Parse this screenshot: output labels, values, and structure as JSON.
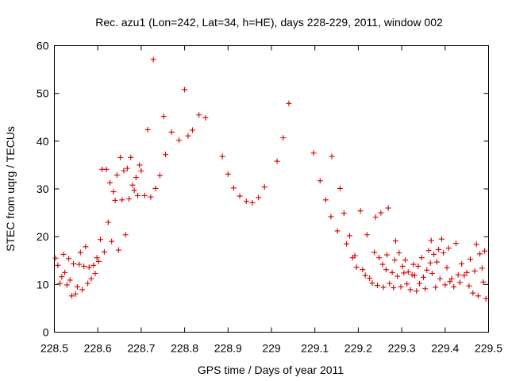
{
  "chart_data": {
    "type": "scatter",
    "title": "Rec. azu1 (Lon=242, Lat=34, h=HE), days 228-229, 2011, window 002",
    "xlabel": "GPS time / Days of year 2011",
    "ylabel": "STEC from uqrg / TECUs",
    "xlim": [
      228.5,
      229.5
    ],
    "ylim": [
      0,
      60
    ],
    "xticks": [
      228.5,
      228.6,
      228.7,
      228.8,
      228.9,
      229,
      229.1,
      229.2,
      229.3,
      229.4,
      229.5
    ],
    "xtick_labels": [
      "228.5",
      "228.6",
      "228.7",
      "228.8",
      "228.9",
      "229",
      "229.1",
      "229.2",
      "229.3",
      "229.4",
      "229.5"
    ],
    "yticks": [
      0,
      10,
      20,
      30,
      40,
      50,
      60
    ],
    "ytick_labels": [
      "0",
      "10",
      "20",
      "30",
      "40",
      "50",
      "60"
    ],
    "grid": false,
    "legend": false,
    "marker": "+",
    "color": "#d40000",
    "points": [
      [
        228.503,
        15.5
      ],
      [
        228.508,
        14.0
      ],
      [
        228.513,
        10.2
      ],
      [
        228.517,
        11.6
      ],
      [
        228.521,
        16.3
      ],
      [
        228.524,
        12.5
      ],
      [
        228.529,
        9.9
      ],
      [
        228.533,
        15.4
      ],
      [
        228.536,
        10.9
      ],
      [
        228.54,
        7.6
      ],
      [
        228.544,
        14.3
      ],
      [
        228.549,
        8.0
      ],
      [
        228.553,
        9.5
      ],
      [
        228.557,
        14.2
      ],
      [
        228.56,
        16.7
      ],
      [
        228.564,
        8.9
      ],
      [
        228.568,
        13.8
      ],
      [
        228.572,
        17.9
      ],
      [
        228.577,
        10.2
      ],
      [
        228.58,
        13.6
      ],
      [
        228.585,
        11.2
      ],
      [
        228.59,
        14.0
      ],
      [
        228.594,
        12.3
      ],
      [
        228.598,
        15.6
      ],
      [
        228.602,
        14.8
      ],
      [
        228.606,
        19.4
      ],
      [
        228.61,
        34.1
      ],
      [
        228.615,
        16.8
      ],
      [
        228.62,
        34.1
      ],
      [
        228.624,
        23.0
      ],
      [
        228.628,
        31.3
      ],
      [
        228.632,
        19.0
      ],
      [
        228.636,
        29.4
      ],
      [
        228.64,
        27.6
      ],
      [
        228.644,
        32.9
      ],
      [
        228.648,
        17.2
      ],
      [
        228.652,
        36.6
      ],
      [
        228.656,
        27.7
      ],
      [
        228.66,
        33.8
      ],
      [
        228.664,
        20.4
      ],
      [
        228.668,
        34.3
      ],
      [
        228.672,
        27.9
      ],
      [
        228.676,
        36.6
      ],
      [
        228.68,
        30.8
      ],
      [
        228.684,
        29.7
      ],
      [
        228.688,
        32.4
      ],
      [
        228.692,
        28.6
      ],
      [
        228.696,
        35.0
      ],
      [
        228.7,
        33.8
      ],
      [
        228.708,
        28.6
      ],
      [
        228.715,
        42.4
      ],
      [
        228.722,
        28.3
      ],
      [
        228.728,
        57.1
      ],
      [
        228.733,
        30.1
      ],
      [
        228.743,
        32.8
      ],
      [
        228.752,
        45.2
      ],
      [
        228.756,
        37.2
      ],
      [
        228.77,
        41.9
      ],
      [
        228.787,
        40.2
      ],
      [
        228.8,
        50.8
      ],
      [
        228.808,
        41.1
      ],
      [
        228.818,
        42.3
      ],
      [
        228.833,
        45.5
      ],
      [
        228.848,
        44.9
      ],
      [
        228.887,
        36.8
      ],
      [
        228.9,
        33.1
      ],
      [
        228.913,
        30.2
      ],
      [
        228.927,
        28.5
      ],
      [
        228.942,
        27.4
      ],
      [
        228.956,
        27.1
      ],
      [
        228.97,
        28.2
      ],
      [
        228.984,
        30.4
      ],
      [
        229.013,
        35.8
      ],
      [
        229.027,
        40.7
      ],
      [
        229.04,
        47.9
      ],
      [
        229.097,
        37.5
      ],
      [
        229.112,
        31.7
      ],
      [
        229.125,
        27.7
      ],
      [
        229.137,
        24.2
      ],
      [
        229.139,
        36.8
      ],
      [
        229.152,
        21.2
      ],
      [
        229.158,
        30.1
      ],
      [
        229.167,
        24.9
      ],
      [
        229.173,
        18.5
      ],
      [
        229.18,
        20.2
      ],
      [
        229.187,
        15.6
      ],
      [
        229.192,
        16.0
      ],
      [
        229.196,
        13.6
      ],
      [
        229.205,
        25.4
      ],
      [
        229.21,
        13.1
      ],
      [
        229.216,
        11.9
      ],
      [
        229.22,
        20.4
      ],
      [
        229.226,
        11.3
      ],
      [
        229.232,
        10.3
      ],
      [
        229.237,
        16.7
      ],
      [
        229.24,
        24.1
      ],
      [
        229.244,
        9.8
      ],
      [
        229.248,
        15.6
      ],
      [
        229.252,
        25.0
      ],
      [
        229.256,
        14.2
      ],
      [
        229.258,
        9.4
      ],
      [
        229.264,
        13.1
      ],
      [
        229.266,
        16.2
      ],
      [
        229.269,
        26.0
      ],
      [
        229.272,
        10.2
      ],
      [
        229.278,
        12.5
      ],
      [
        229.281,
        9.3
      ],
      [
        229.284,
        15.1
      ],
      [
        229.286,
        19.1
      ],
      [
        229.29,
        11.7
      ],
      [
        229.294,
        16.6
      ],
      [
        229.298,
        9.5
      ],
      [
        229.302,
        13.8
      ],
      [
        229.305,
        12.4
      ],
      [
        229.308,
        15.1
      ],
      [
        229.312,
        10.1
      ],
      [
        229.315,
        12.6
      ],
      [
        229.32,
        8.9
      ],
      [
        229.324,
        12.0
      ],
      [
        229.327,
        14.2
      ],
      [
        229.33,
        11.9
      ],
      [
        229.334,
        8.6
      ],
      [
        229.338,
        13.8
      ],
      [
        229.341,
        10.2
      ],
      [
        229.346,
        15.6
      ],
      [
        229.35,
        11.5
      ],
      [
        229.354,
        9.1
      ],
      [
        229.358,
        13.0
      ],
      [
        229.362,
        17.1
      ],
      [
        229.366,
        14.5
      ],
      [
        229.368,
        19.2
      ],
      [
        229.37,
        12.3
      ],
      [
        229.374,
        16.3
      ],
      [
        229.378,
        9.4
      ],
      [
        229.381,
        14.7
      ],
      [
        229.385,
        17.3
      ],
      [
        229.388,
        11.2
      ],
      [
        229.392,
        19.5
      ],
      [
        229.396,
        16.6
      ],
      [
        229.4,
        9.9
      ],
      [
        229.404,
        13.5
      ],
      [
        229.408,
        17.6
      ],
      [
        229.411,
        10.6
      ],
      [
        229.415,
        11.2
      ],
      [
        229.42,
        9.5
      ],
      [
        229.425,
        18.6
      ],
      [
        229.43,
        12.0
      ],
      [
        229.434,
        10.4
      ],
      [
        229.438,
        14.3
      ],
      [
        229.444,
        11.9
      ],
      [
        229.45,
        12.5
      ],
      [
        229.455,
        9.7
      ],
      [
        229.458,
        15.3
      ],
      [
        229.464,
        8.2
      ],
      [
        229.468,
        12.8
      ],
      [
        229.472,
        18.4
      ],
      [
        229.476,
        7.6
      ],
      [
        229.48,
        16.4
      ],
      [
        229.485,
        13.4
      ],
      [
        229.488,
        10.5
      ],
      [
        229.491,
        17.0
      ],
      [
        229.494,
        7.0
      ]
    ]
  }
}
